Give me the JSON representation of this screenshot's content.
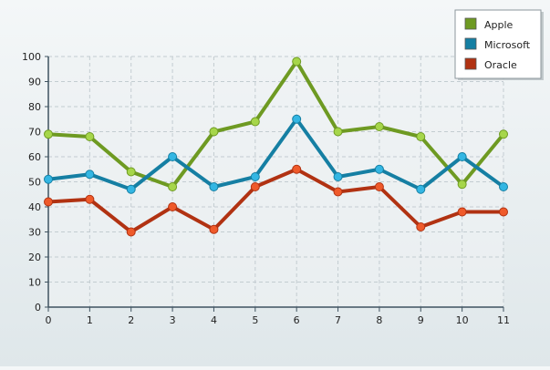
{
  "chart_data": {
    "type": "line",
    "x": [
      0,
      1,
      2,
      3,
      4,
      5,
      6,
      7,
      8,
      9,
      10,
      11
    ],
    "ylim": [
      0,
      100
    ],
    "yticks": [
      0,
      10,
      20,
      30,
      40,
      50,
      60,
      70,
      80,
      90,
      100
    ],
    "grid": true,
    "legend_position": "top-right",
    "series": [
      {
        "name": "Apple",
        "color": "#6e9a22",
        "marker_color": "#a6d64a",
        "values": [
          69,
          68,
          54,
          48,
          70,
          74,
          98,
          70,
          72,
          68,
          49,
          69
        ]
      },
      {
        "name": "Microsoft",
        "color": "#157fa3",
        "marker_color": "#33b6e3",
        "values": [
          51,
          53,
          47,
          60,
          48,
          52,
          75,
          52,
          55,
          47,
          60,
          48
        ]
      },
      {
        "name": "Oracle",
        "color": "#b13212",
        "marker_color": "#ef5a2a",
        "values": [
          42,
          43,
          30,
          40,
          31,
          48,
          55,
          46,
          48,
          32,
          38,
          38
        ]
      }
    ]
  }
}
